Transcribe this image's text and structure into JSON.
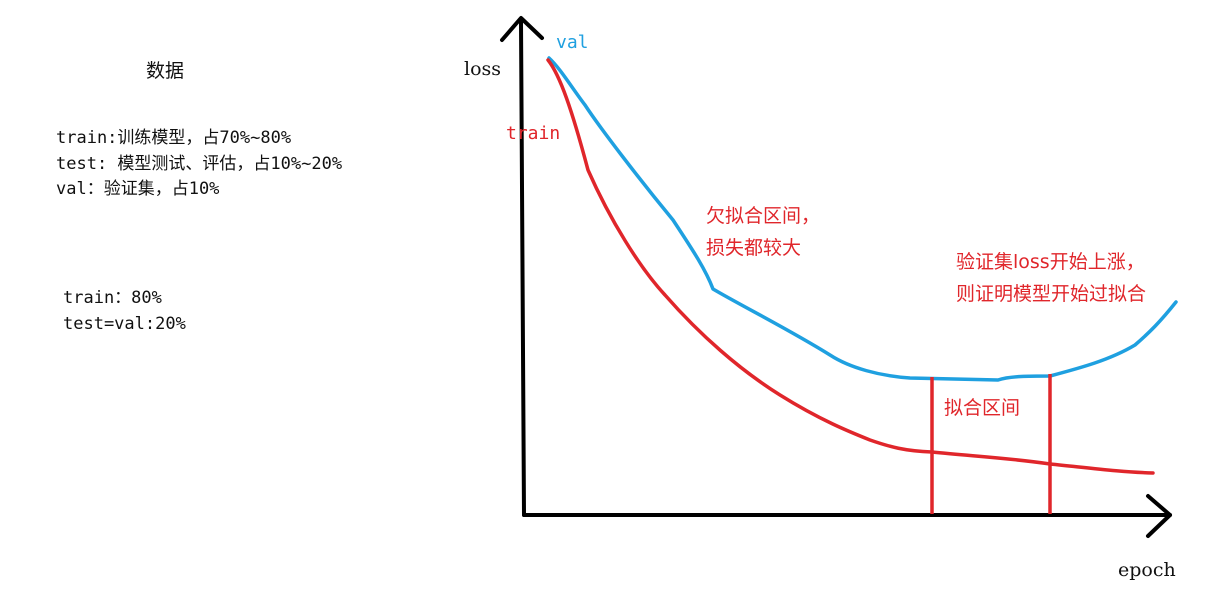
{
  "notes": {
    "title": "数据",
    "block1": [
      "train:训练模型，占70%~80%",
      "test: 模型测试、评估，占10%~20%",
      "val：验证集，占10%"
    ],
    "block2": [
      "train：80%",
      "test=val:20%"
    ]
  },
  "colors": {
    "train": "#e0262b",
    "val": "#1fa0e0",
    "axis": "#000000",
    "annotation": "#e0262b",
    "marker": "#e0262b"
  },
  "diagram": {
    "y_axis_label": "loss",
    "x_axis_label": "epoch",
    "series": [
      {
        "name": "val",
        "color_key": "val"
      },
      {
        "name": "train",
        "color_key": "train"
      }
    ],
    "annotations": {
      "underfit": [
        "欠拟合区间，",
        "损失都较大"
      ],
      "overfit": [
        "验证集loss开始上涨，",
        "则证明模型开始过拟合"
      ],
      "fit_range": "拟合区间"
    }
  }
}
